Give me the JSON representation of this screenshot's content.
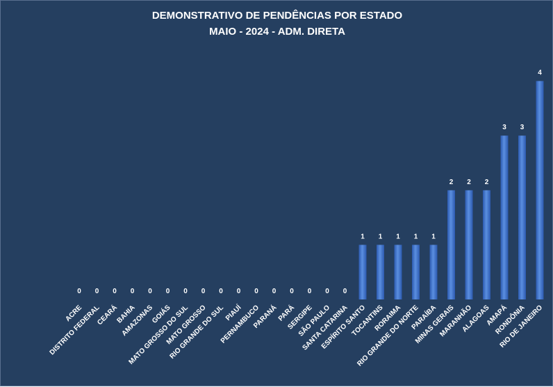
{
  "title_line_1": "DEMONSTRATIVO DE PENDÊNCIAS POR ESTADO",
  "title_line_2": "MAIO - 2024 - ADM.  DIRETA",
  "colors": {
    "background": "#253f60",
    "bar_light": "#5b8fe0",
    "bar_dark": "#2c5ab0",
    "text": "#ffffff"
  },
  "chart_data": {
    "type": "bar",
    "title": "DEMONSTRATIVO DE PENDÊNCIAS POR ESTADO",
    "subtitle": "MAIO - 2024 - ADM.  DIRETA",
    "xlabel": "",
    "ylabel": "",
    "ylim": [
      0,
      4
    ],
    "grid": false,
    "legend": "none",
    "categories": [
      "ACRE",
      "DISTRITO FEDERAL",
      "CEARÁ",
      "BAHIA",
      "AMAZONAS",
      "GOIÁS",
      "MATO GROSSO DO SUL",
      "MATO GROSSO",
      "RIO GRANDE DO SUL",
      "PIAUÍ",
      "PERNAMBUCO",
      "PARANÁ",
      "PARÁ",
      "SERGIPE",
      "SÃO PAULO",
      "SANTA CATARINA",
      "ESPÍRITO SANTO",
      "TOCANTINS",
      "RORAIMA",
      "RIO GRANDE DO NORTE",
      "PARAÍBA",
      "MINAS GERAIS",
      "MARANHÃO",
      "ALAGOAS",
      "AMAPÁ",
      "RONDÔNIA",
      "RIO DE JANEIRO"
    ],
    "values": [
      0,
      0,
      0,
      0,
      0,
      0,
      0,
      0,
      0,
      0,
      0,
      0,
      0,
      0,
      0,
      0,
      1,
      1,
      1,
      1,
      1,
      2,
      2,
      2,
      3,
      3,
      4
    ]
  }
}
